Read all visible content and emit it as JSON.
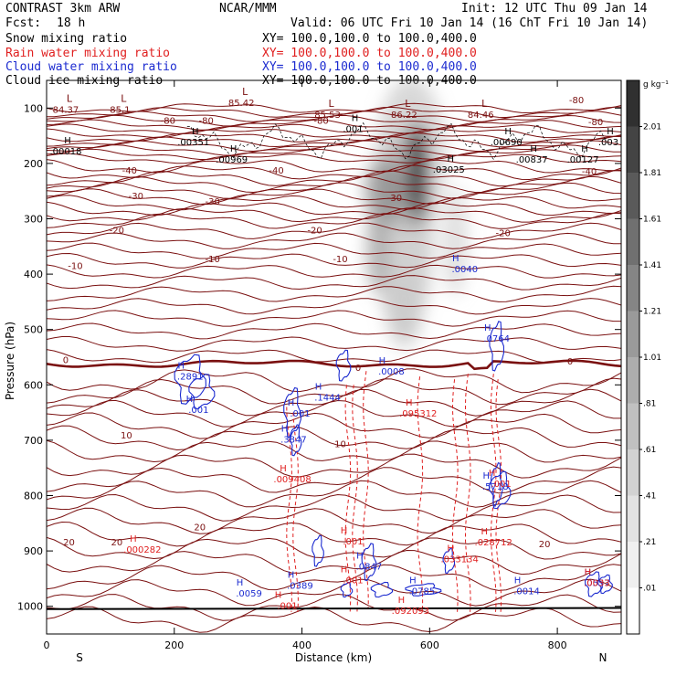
{
  "header": {
    "title": "CONTRAST  3km ARW",
    "center": "NCAR/MMM",
    "init": "Init: 12 UTC Thu 09 Jan 14",
    "fcst_label": "Fcst:",
    "fcst_value": "18 h",
    "valid": "Valid: 06 UTC Fri 10 Jan 14 (16 ChT Fri 10 Jan 14)",
    "fields": [
      {
        "name": "Snow mixing ratio",
        "xy": "XY= 100.0,100.0 to 100.0,400.0",
        "color": "#000000"
      },
      {
        "name": "Rain water mixing ratio",
        "xy": "XY= 100.0,100.0 to 100.0,400.0",
        "color": "#e02020"
      },
      {
        "name": "Cloud water mixing ratio",
        "xy": "XY= 100.0,100.0 to 100.0,400.0",
        "color": "#1c2bd0"
      },
      {
        "name": "Cloud ice mixing ratio",
        "xy": "XY= 100.0,100.0 to 100.0,400.0",
        "color": "#000000"
      }
    ]
  },
  "chart_data": {
    "type": "contour",
    "xlabel": "Distance (km)",
    "ylabel": "Pressure (hPa)",
    "xlim": [
      0,
      900
    ],
    "ylim": [
      1050,
      50
    ],
    "xticks": [
      "0",
      "200",
      "400",
      "600",
      "800"
    ],
    "yticks": [
      "100",
      "200",
      "300",
      "400",
      "500",
      "600",
      "700",
      "800",
      "900",
      "1000"
    ],
    "left_end": "S",
    "right_end": "N",
    "colorbar": {
      "unit": "g kg⁻¹",
      "ticks": [
        "2.01",
        "1.81",
        "1.61",
        "1.41",
        "1.21",
        "1.01",
        ".81",
        ".61",
        ".41",
        ".21",
        ".01"
      ],
      "shades": [
        "#303030",
        "#444444",
        "#5a5a5a",
        "#707070",
        "#858585",
        "#9a9a9a",
        "#adadad",
        "#c0c0c0",
        "#d2d2d2",
        "#e2e2e2",
        "#f0f0f0",
        "#ffffff"
      ]
    },
    "colors": {
      "temperature": "#7a1010",
      "rain": "#e02020",
      "cloud": "#1c2bd0"
    },
    "temperature_contour_labels": [
      {
        "t": "-80",
        "x": 190,
        "p": 122
      },
      {
        "t": "-80",
        "x": 250,
        "p": 122
      },
      {
        "t": "-80",
        "x": 430,
        "p": 122
      },
      {
        "t": "-80",
        "x": 830,
        "p": 85
      },
      {
        "t": "-80",
        "x": 860,
        "p": 124
      },
      {
        "t": "-40",
        "x": 130,
        "p": 212
      },
      {
        "t": "-40",
        "x": 360,
        "p": 212
      },
      {
        "t": "-40",
        "x": 850,
        "p": 213
      },
      {
        "t": "-30",
        "x": 140,
        "p": 258
      },
      {
        "t": "-30",
        "x": 260,
        "p": 268
      },
      {
        "t": "-30",
        "x": 545,
        "p": 261
      },
      {
        "t": "-20",
        "x": 110,
        "p": 320
      },
      {
        "t": "-20",
        "x": 420,
        "p": 320
      },
      {
        "t": "-20",
        "x": 715,
        "p": 325
      },
      {
        "t": "-10",
        "x": 45,
        "p": 384
      },
      {
        "t": "-10",
        "x": 260,
        "p": 372
      },
      {
        "t": "-10",
        "x": 460,
        "p": 372
      },
      {
        "t": "0",
        "x": 30,
        "p": 554
      },
      {
        "t": "0",
        "x": 488,
        "p": 568
      },
      {
        "t": "0",
        "x": 820,
        "p": 557
      },
      {
        "t": "10",
        "x": 125,
        "p": 690
      },
      {
        "t": "10",
        "x": 460,
        "p": 706
      },
      {
        "t": "20",
        "x": 35,
        "p": 883
      },
      {
        "t": "20",
        "x": 110,
        "p": 883
      },
      {
        "t": "20",
        "x": 240,
        "p": 856
      },
      {
        "t": "20",
        "x": 780,
        "p": 887
      }
    ],
    "temperature_lows": [
      {
        "label": "L",
        "value": "84.37",
        "x": 30,
        "p": 92
      },
      {
        "label": "L",
        "value": "85.1",
        "x": 115,
        "p": 92
      },
      {
        "label": "L",
        "value": "85.42",
        "x": 305,
        "p": 80
      },
      {
        "label": "L",
        "value": "85.53",
        "x": 440,
        "p": 101
      },
      {
        "label": "L",
        "value": "86.22",
        "x": 560,
        "p": 101
      },
      {
        "label": "L",
        "value": "84.46",
        "x": 680,
        "p": 101
      }
    ],
    "ice_highs": [
      {
        "value": ".00018",
        "x": 30,
        "p": 174
      },
      {
        "value": ".00351",
        "x": 230,
        "p": 157
      },
      {
        "value": ".00969",
        "x": 290,
        "p": 189
      },
      {
        "value": ".001",
        "x": 480,
        "p": 133
      },
      {
        "value": ".03025",
        "x": 630,
        "p": 207
      },
      {
        "value": ".00690",
        "x": 720,
        "p": 157
      },
      {
        "value": ".00837",
        "x": 760,
        "p": 189
      },
      {
        "value": ".00127",
        "x": 840,
        "p": 189
      },
      {
        "value": ".003",
        "x": 880,
        "p": 157
      }
    ],
    "cloud_highs": [
      {
        "value": ".0040",
        "x": 655,
        "p": 393
      },
      {
        "value": ".0764",
        "x": 705,
        "p": 519
      },
      {
        "value": ".2891",
        "x": 225,
        "p": 587
      },
      {
        "value": ".001",
        "x": 238,
        "p": 647
      },
      {
        "value": ".1444",
        "x": 440,
        "p": 625
      },
      {
        "value": ".0008",
        "x": 540,
        "p": 578
      },
      {
        "value": ".001",
        "x": 397,
        "p": 654
      },
      {
        "value": ".3847",
        "x": 387,
        "p": 701
      },
      {
        "value": ".5718",
        "x": 703,
        "p": 786
      },
      {
        "value": ".0847",
        "x": 505,
        "p": 930
      },
      {
        "value": ".0389",
        "x": 397,
        "p": 965
      },
      {
        "value": ".0059",
        "x": 317,
        "p": 979
      },
      {
        "value": ".0785",
        "x": 588,
        "p": 975
      },
      {
        "value": ".0014",
        "x": 752,
        "p": 975
      },
      {
        "value": ".0557",
        "x": 862,
        "p": 960
      }
    ],
    "rain_highs": [
      {
        "value": ".095312",
        "x": 582,
        "p": 654
      },
      {
        "value": ".009408",
        "x": 385,
        "p": 773
      },
      {
        "value": ".001",
        "x": 712,
        "p": 781
      },
      {
        "value": ".028712",
        "x": 700,
        "p": 887
      },
      {
        "value": ".000282",
        "x": 150,
        "p": 900
      },
      {
        "value": ".001",
        "x": 480,
        "p": 885
      },
      {
        "value": ".033134",
        "x": 647,
        "p": 917
      },
      {
        "value": ".001",
        "x": 480,
        "p": 955
      },
      {
        "value": ".092093",
        "x": 570,
        "p": 1010
      },
      {
        "value": ".001",
        "x": 377,
        "p": 1001
      },
      {
        "value": ".0033",
        "x": 862,
        "p": 960
      }
    ],
    "snow_shading": [
      {
        "x": 570,
        "p": 185,
        "rx": 55,
        "rp": 140,
        "v": 0.6
      },
      {
        "x": 560,
        "p": 330,
        "rx": 45,
        "rp": 190,
        "v": 0.7
      },
      {
        "x": 580,
        "p": 215,
        "rx": 16,
        "rp": 90,
        "v": 1.9
      },
      {
        "x": 530,
        "p": 250,
        "rx": 32,
        "rp": 60,
        "v": 1.1
      },
      {
        "x": 518,
        "p": 355,
        "rx": 18,
        "rp": 80,
        "v": 0.9
      },
      {
        "x": 640,
        "p": 340,
        "rx": 20,
        "rp": 100,
        "v": 0.5
      },
      {
        "x": 560,
        "p": 470,
        "rx": 28,
        "rp": 70,
        "v": 0.4
      }
    ]
  }
}
